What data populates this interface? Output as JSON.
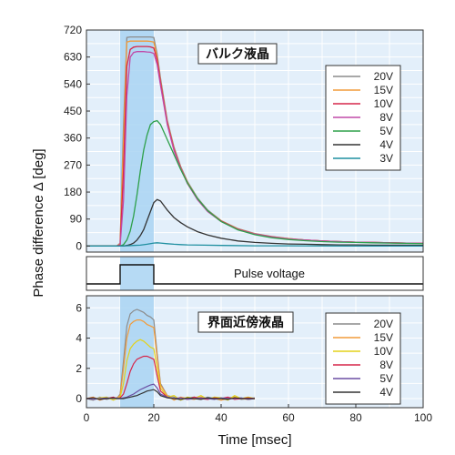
{
  "chart_data": [
    {
      "type": "line",
      "title": "バルク液晶",
      "ylabel": "Phase difference Δ [deg]",
      "xlim": [
        0,
        100
      ],
      "ylim": [
        -20,
        720
      ],
      "yticks": [
        0,
        90,
        180,
        270,
        360,
        450,
        540,
        630,
        720
      ],
      "grid": true,
      "legend": "top-right",
      "pulse_window": [
        10,
        20
      ],
      "series": [
        {
          "name": "20V",
          "color": "#8c8c8c",
          "x": [
            0,
            9,
            10,
            11,
            12,
            13,
            14,
            15,
            16,
            17,
            18,
            19,
            20,
            21,
            22,
            24,
            26,
            28,
            30,
            33,
            36,
            40,
            45,
            50,
            55,
            60,
            65,
            70,
            75,
            80,
            85,
            90,
            95,
            100
          ],
          "y": [
            0,
            0,
            10,
            400,
            695,
            697,
            697,
            697,
            697,
            697,
            697,
            697,
            695,
            640,
            560,
            420,
            330,
            265,
            215,
            160,
            120,
            85,
            58,
            42,
            32,
            25,
            20,
            17,
            15,
            13,
            12,
            11,
            10,
            9
          ]
        },
        {
          "name": "15V",
          "color": "#f29b3a",
          "x": [
            0,
            9,
            10,
            11,
            12,
            13,
            14,
            15,
            16,
            17,
            18,
            19,
            20,
            21,
            22,
            24,
            26,
            28,
            30,
            33,
            36,
            40,
            45,
            50,
            55,
            60,
            65,
            70,
            75,
            80,
            85,
            90,
            95,
            100
          ],
          "y": [
            0,
            0,
            8,
            350,
            680,
            683,
            683,
            683,
            683,
            683,
            683,
            682,
            680,
            630,
            550,
            415,
            325,
            262,
            212,
            158,
            118,
            84,
            57,
            41,
            31,
            25,
            20,
            17,
            15,
            13,
            12,
            11,
            10,
            9
          ]
        },
        {
          "name": "10V",
          "color": "#d6264a",
          "x": [
            0,
            9,
            10,
            11,
            12,
            13,
            14,
            15,
            16,
            17,
            18,
            19,
            20,
            21,
            22,
            24,
            26,
            28,
            30,
            33,
            36,
            40,
            45,
            50,
            55,
            60,
            65,
            70,
            75,
            80,
            85,
            90,
            95,
            100
          ],
          "y": [
            0,
            0,
            5,
            250,
            600,
            655,
            663,
            665,
            665,
            665,
            665,
            664,
            660,
            620,
            545,
            410,
            322,
            260,
            210,
            156,
            117,
            83,
            56,
            40,
            31,
            24,
            20,
            17,
            15,
            13,
            12,
            11,
            10,
            9
          ]
        },
        {
          "name": "8V",
          "color": "#c04aa8",
          "x": [
            0,
            9,
            10,
            11,
            12,
            13,
            14,
            15,
            16,
            17,
            18,
            19,
            20,
            21,
            22,
            24,
            26,
            28,
            30,
            33,
            36,
            40,
            45,
            50,
            55,
            60,
            65,
            70,
            75,
            80,
            85,
            90,
            95,
            100
          ],
          "y": [
            0,
            0,
            3,
            150,
            500,
            630,
            645,
            648,
            648,
            648,
            647,
            646,
            642,
            605,
            535,
            405,
            318,
            258,
            208,
            154,
            115,
            82,
            55,
            40,
            30,
            24,
            20,
            17,
            15,
            13,
            12,
            11,
            10,
            9
          ]
        },
        {
          "name": "5V",
          "color": "#2ea04a",
          "x": [
            0,
            9,
            10,
            11,
            12,
            13,
            14,
            15,
            16,
            17,
            18,
            19,
            20,
            21,
            22,
            24,
            26,
            28,
            30,
            33,
            36,
            40,
            45,
            50,
            55,
            60,
            65,
            70,
            75,
            80,
            85,
            90,
            95,
            100
          ],
          "y": [
            0,
            0,
            0,
            5,
            20,
            50,
            100,
            170,
            250,
            320,
            370,
            405,
            415,
            418,
            405,
            355,
            305,
            255,
            210,
            158,
            118,
            82,
            54,
            38,
            28,
            22,
            18,
            15,
            13,
            12,
            11,
            10,
            9,
            8
          ]
        },
        {
          "name": "4V",
          "color": "#333333",
          "x": [
            0,
            9,
            10,
            11,
            12,
            13,
            14,
            15,
            16,
            17,
            18,
            19,
            20,
            21,
            22,
            24,
            26,
            28,
            30,
            33,
            36,
            40,
            45,
            50,
            55,
            60,
            65,
            70,
            75,
            80,
            85,
            90,
            95,
            100
          ],
          "y": [
            0,
            0,
            0,
            0,
            2,
            5,
            10,
            20,
            35,
            55,
            85,
            115,
            145,
            155,
            150,
            120,
            95,
            78,
            64,
            48,
            37,
            26,
            17,
            12,
            9,
            7,
            6,
            5,
            4,
            4,
            3,
            3,
            3,
            2
          ]
        },
        {
          "name": "3V",
          "color": "#1f8fa0",
          "x": [
            0,
            9,
            10,
            12,
            14,
            16,
            18,
            20,
            21,
            22,
            24,
            26,
            28,
            30,
            35,
            40,
            50,
            60,
            80,
            100
          ],
          "y": [
            0,
            0,
            0,
            1,
            2,
            3,
            6,
            10,
            11,
            10,
            8,
            6,
            5,
            4,
            3,
            2,
            1,
            1,
            0,
            0
          ]
        }
      ]
    },
    {
      "type": "line",
      "title": "Pulse voltage",
      "xlim": [
        0,
        100
      ],
      "pulse_window": [
        10,
        20
      ],
      "series": [
        {
          "x": [
            0,
            10,
            10,
            20,
            20,
            100
          ],
          "y": [
            0,
            0,
            1,
            1,
            0,
            0
          ]
        }
      ]
    },
    {
      "type": "line",
      "title": "界面近傍液晶",
      "xlabel": "Time [msec]",
      "xlim": [
        0,
        100
      ],
      "ylim": [
        -0.6,
        6.8
      ],
      "yticks": [
        0,
        2,
        4,
        6
      ],
      "xticks": [
        0,
        20,
        40,
        60,
        80,
        100
      ],
      "grid": true,
      "legend": "top-right",
      "pulse_window": [
        10,
        20
      ],
      "series": [
        {
          "name": "20V",
          "color": "#8c8c8c",
          "x": [
            0,
            2,
            4,
            6,
            8,
            9,
            10,
            11,
            12,
            13,
            14,
            15,
            16,
            17,
            18,
            19,
            20,
            21,
            22,
            24,
            26,
            28,
            30,
            32,
            34,
            36,
            38,
            40,
            42,
            44,
            46,
            48,
            50
          ],
          "y": [
            0,
            -0.1,
            0.1,
            -0.05,
            0.05,
            0,
            0.3,
            2.5,
            4.8,
            5.6,
            5.8,
            5.9,
            5.8,
            5.7,
            5.5,
            5.4,
            5.2,
            3.0,
            1.0,
            0.2,
            0.1,
            -0.1,
            0.05,
            0.1,
            -0.05,
            0.1,
            0,
            -0.1,
            0.05,
            0.1,
            -0.05,
            0,
            0.05
          ]
        },
        {
          "name": "15V",
          "color": "#f29b3a",
          "x": [
            0,
            2,
            4,
            6,
            8,
            9,
            10,
            11,
            12,
            13,
            14,
            15,
            16,
            17,
            18,
            19,
            20,
            21,
            22,
            24,
            26,
            28,
            30,
            32,
            34,
            36,
            38,
            40,
            42,
            44,
            46,
            48,
            50
          ],
          "y": [
            0,
            0.1,
            -0.1,
            0.05,
            0,
            0.05,
            0.2,
            2.0,
            4.0,
            4.9,
            5.1,
            5.2,
            5.2,
            5.1,
            4.9,
            4.8,
            4.7,
            2.7,
            0.9,
            0.2,
            -0.1,
            0.1,
            0,
            -0.05,
            0.1,
            0,
            0.05,
            -0.1,
            0,
            0.1,
            0,
            -0.05,
            0
          ]
        },
        {
          "name": "10V",
          "color": "#e3d21a",
          "x": [
            0,
            2,
            4,
            6,
            8,
            9,
            10,
            11,
            12,
            13,
            14,
            15,
            16,
            17,
            18,
            19,
            20,
            21,
            22,
            24,
            26,
            28,
            30,
            32,
            34,
            36,
            38,
            40,
            42,
            44,
            46,
            48,
            50
          ],
          "y": [
            0,
            -0.05,
            0.05,
            0.1,
            -0.1,
            0,
            0.1,
            1.0,
            2.5,
            3.3,
            3.6,
            3.8,
            3.9,
            3.8,
            3.6,
            3.4,
            3.3,
            2.0,
            0.7,
            0.1,
            0.2,
            -0.1,
            0.1,
            0,
            0.2,
            -0.05,
            0.1,
            0.05,
            -0.1,
            0.2,
            0,
            0.1,
            0
          ]
        },
        {
          "name": "8V",
          "color": "#d6264a",
          "x": [
            0,
            2,
            4,
            6,
            8,
            9,
            10,
            11,
            12,
            13,
            14,
            15,
            16,
            17,
            18,
            19,
            20,
            21,
            22,
            24,
            26,
            28,
            30,
            32,
            34,
            36,
            38,
            40,
            42,
            44,
            46,
            48,
            50
          ],
          "y": [
            0,
            0.05,
            -0.05,
            0,
            0.1,
            0,
            0.05,
            0.3,
            1.0,
            1.8,
            2.3,
            2.6,
            2.7,
            2.8,
            2.8,
            2.7,
            2.6,
            1.5,
            0.5,
            0.1,
            0,
            0.05,
            -0.05,
            0.1,
            0,
            -0.05,
            0.05,
            0,
            0.1,
            -0.05,
            0,
            0.05,
            0
          ]
        },
        {
          "name": "5V",
          "color": "#6b4fa3",
          "x": [
            0,
            2,
            4,
            6,
            8,
            9,
            10,
            11,
            12,
            13,
            14,
            15,
            16,
            17,
            18,
            19,
            20,
            21,
            22,
            24,
            26,
            28,
            30,
            32,
            34,
            36,
            38,
            40,
            42,
            44,
            46,
            48,
            50
          ],
          "y": [
            0,
            -0.05,
            0,
            0.05,
            0,
            0.05,
            0,
            0.05,
            0.1,
            0.2,
            0.3,
            0.45,
            0.6,
            0.7,
            0.8,
            0.9,
            0.95,
            0.7,
            0.3,
            0.1,
            0,
            0.05,
            -0.05,
            0,
            0.05,
            0,
            -0.05,
            0.05,
            0,
            0,
            0.05,
            -0.05,
            0
          ]
        },
        {
          "name": "4V",
          "color": "#333333",
          "x": [
            0,
            2,
            4,
            6,
            8,
            9,
            10,
            11,
            12,
            13,
            14,
            15,
            16,
            17,
            18,
            19,
            20,
            21,
            22,
            24,
            26,
            28,
            30,
            32,
            34,
            36,
            38,
            40,
            42,
            44,
            46,
            48,
            50
          ],
          "y": [
            0,
            0.05,
            -0.05,
            0,
            0.05,
            0,
            0,
            0,
            0.05,
            0.1,
            0.15,
            0.2,
            0.3,
            0.4,
            0.5,
            0.55,
            0.6,
            0.45,
            0.2,
            0.05,
            0,
            -0.05,
            0.05,
            0,
            -0.05,
            0.05,
            0,
            0,
            -0.05,
            0.05,
            0,
            0,
            0
          ]
        }
      ]
    }
  ],
  "pulse_label": "Pulse voltage",
  "shared_ylabel": "Phase difference Δ [deg]",
  "shared_xlabel": "Time [msec]",
  "colors": {
    "panel_bg": "#e3effa",
    "pulse_band": "#a9d4f2",
    "grid": "#ffffff",
    "frame": "#333333"
  }
}
